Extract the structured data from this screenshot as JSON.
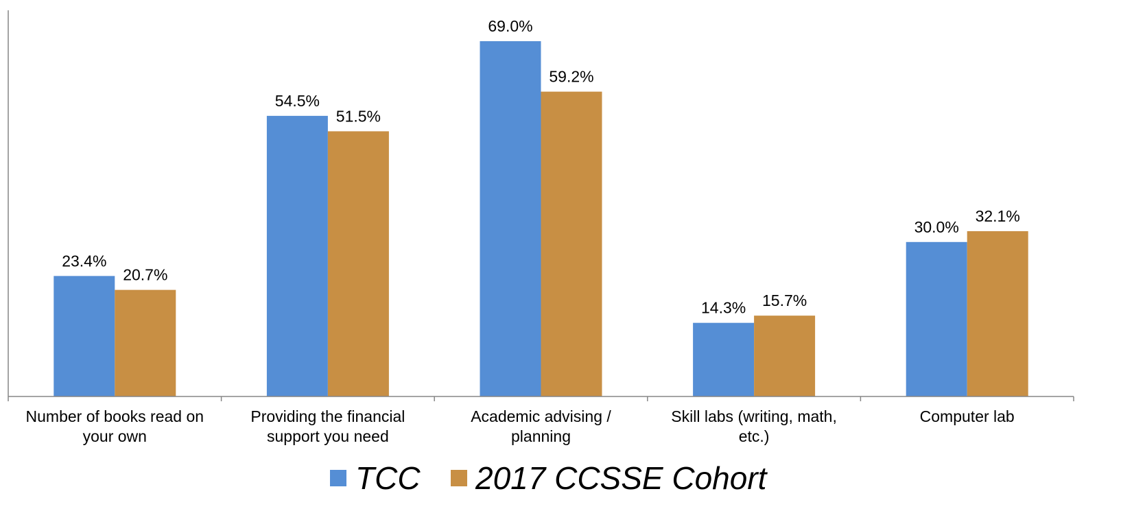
{
  "chart_data": {
    "type": "bar",
    "categories": [
      [
        "Number of books read on",
        "your own"
      ],
      [
        "Providing the financial",
        "support you need"
      ],
      [
        "Academic advising /",
        "planning"
      ],
      [
        "Skill labs (writing, math,",
        "etc.)"
      ],
      [
        "Computer lab"
      ]
    ],
    "series": [
      {
        "name": "TCC",
        "color": "#558ED5",
        "values": [
          23.4,
          54.5,
          69.0,
          14.3,
          30.0
        ],
        "labels": [
          "23.4%",
          "54.5%",
          "69.0%",
          "14.3%",
          "30.0%"
        ]
      },
      {
        "name": "2017 CCSSE Cohort",
        "color": "#C88F44",
        "values": [
          20.7,
          51.5,
          59.2,
          15.7,
          32.1
        ],
        "labels": [
          "20.7%",
          "51.5%",
          "59.2%",
          "15.7%",
          "32.1%"
        ]
      }
    ],
    "ylim": [
      0,
      75
    ],
    "grid": false,
    "legend_position": "bottom"
  }
}
